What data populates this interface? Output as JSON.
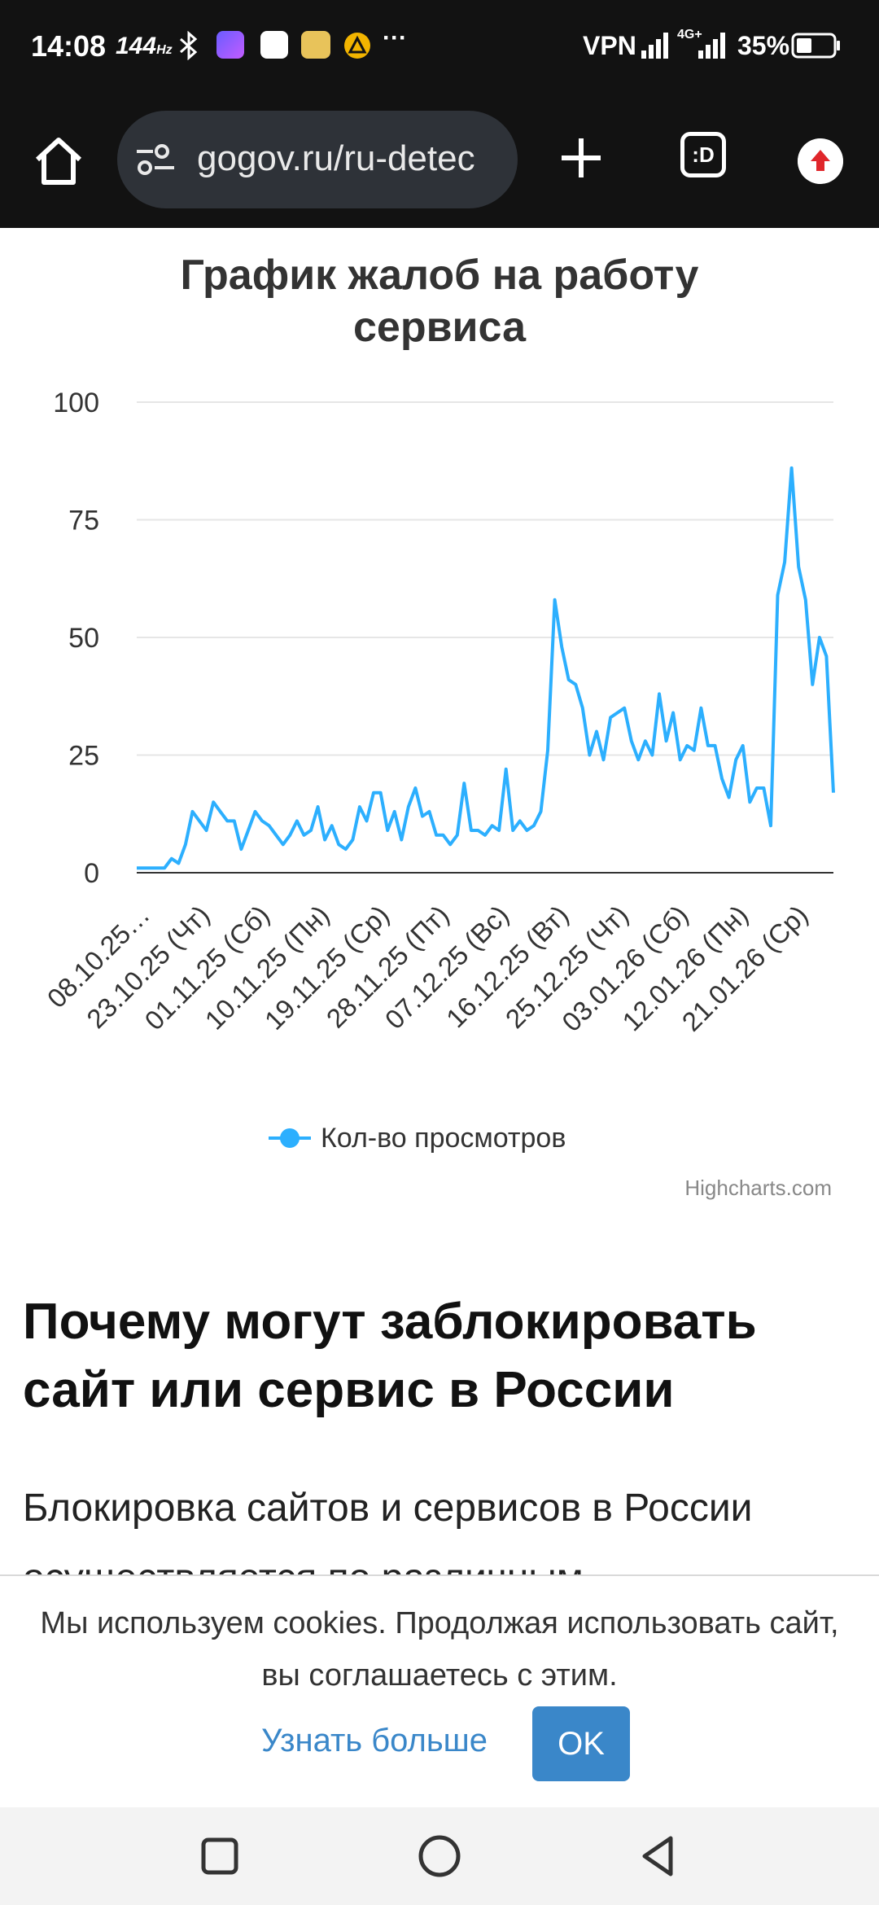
{
  "status_bar": {
    "time": "14:08",
    "refresh_rate": "144",
    "refresh_unit": "Hz",
    "vpn": "VPN",
    "network": "4G+",
    "battery": "35%",
    "more": "···"
  },
  "browser": {
    "url": "gogov.ru/ru-detec",
    "tabs_label": ":D"
  },
  "chart": {
    "title_line1": "График жалоб на работу",
    "title_line2": "сервиса",
    "legend_label": "Кол-во просмотров",
    "credits": "Highcharts.com"
  },
  "chart_data": {
    "type": "line",
    "title": "График жалоб на работу сервиса",
    "ylim": [
      0,
      100
    ],
    "yticks": [
      0,
      25,
      50,
      75,
      100
    ],
    "grid": true,
    "legend_position": "bottom",
    "series_color": "#2caffe",
    "x_tick_labels": [
      "08.10.25…",
      "23.10.25 (Чт)",
      "01.11.25 (Сб)",
      "10.11.25 (Пн)",
      "19.11.25 (Ср)",
      "28.11.25 (Пт)",
      "07.12.25 (Вс)",
      "16.12.25 (Вт)",
      "25.12.25 (Чт)",
      "03.01.26 (Сб)",
      "12.01.26 (Пн)",
      "21.01.26 (Ср)"
    ],
    "series": [
      {
        "name": "Кол-во просмотров",
        "values": [
          1,
          1,
          1,
          1,
          1,
          3,
          2,
          6,
          13,
          11,
          9,
          15,
          13,
          11,
          11,
          5,
          9,
          13,
          11,
          10,
          8,
          6,
          8,
          11,
          8,
          9,
          14,
          7,
          10,
          6,
          5,
          7,
          14,
          11,
          17,
          17,
          9,
          13,
          7,
          14,
          18,
          12,
          13,
          8,
          8,
          6,
          8,
          19,
          9,
          9,
          8,
          10,
          9,
          22,
          9,
          11,
          9,
          10,
          13,
          26,
          58,
          48,
          41,
          40,
          35,
          25,
          30,
          24,
          33,
          34,
          35,
          28,
          24,
          28,
          25,
          38,
          28,
          34,
          24,
          27,
          26,
          35,
          27,
          27,
          20,
          16,
          24,
          27,
          15,
          18,
          18,
          10,
          59,
          66,
          86,
          65,
          58,
          40,
          50,
          46,
          17
        ]
      }
    ]
  },
  "content": {
    "section_title": "Почему могут заблокировать сайт или сервис в России",
    "section_text": "Блокировка сайтов и сервисов в России осуществляется по различным"
  },
  "cookie": {
    "text": "Мы используем cookies. Продолжая использовать сайт, вы соглашаетесь с этим.",
    "learn_more": "Узнать больше",
    "ok": "OK"
  }
}
